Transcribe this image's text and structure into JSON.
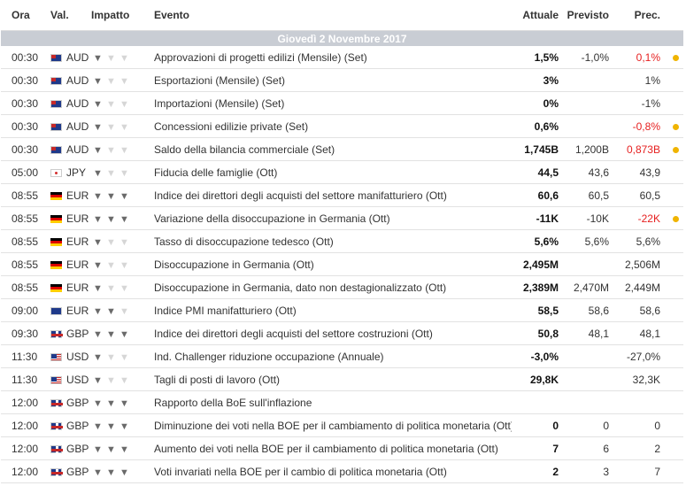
{
  "headers": {
    "time": "Ora",
    "currency": "Val.",
    "impact": "Impatto",
    "event": "Evento",
    "actual": "Attuale",
    "forecast": "Previsto",
    "previous": "Prec."
  },
  "date_label": "Giovedì 2 Novembre 2017",
  "colors": {
    "positive": "#2aa02a",
    "negative": "#e62020",
    "date_bar": "#c9cdd4",
    "revision_dot": "#f0b400"
  },
  "events": [
    {
      "time": "00:30",
      "flag": "au",
      "currency": "AUD",
      "impact": 1,
      "event": "Approvazioni di progetti edilizi (Mensile) (Set)",
      "actual": "1,5%",
      "actual_color": "green",
      "forecast": "-1,0%",
      "previous": "0,1%",
      "previous_color": "red",
      "dot": true
    },
    {
      "time": "00:30",
      "flag": "au",
      "currency": "AUD",
      "impact": 1,
      "event": "Esportazioni (Mensile) (Set)",
      "actual": "3%",
      "actual_color": "",
      "forecast": "",
      "previous": "1%",
      "previous_color": "",
      "dot": false
    },
    {
      "time": "00:30",
      "flag": "au",
      "currency": "AUD",
      "impact": 1,
      "event": "Importazioni (Mensile) (Set)",
      "actual": "0%",
      "actual_color": "",
      "forecast": "",
      "previous": "-1%",
      "previous_color": "",
      "dot": false
    },
    {
      "time": "00:30",
      "flag": "au",
      "currency": "AUD",
      "impact": 1,
      "event": "Concessioni edilizie private (Set)",
      "actual": "0,6%",
      "actual_color": "",
      "forecast": "",
      "previous": "-0,8%",
      "previous_color": "red",
      "dot": true
    },
    {
      "time": "00:30",
      "flag": "au",
      "currency": "AUD",
      "impact": 1,
      "event": "Saldo della bilancia commerciale (Set)",
      "actual": "1,745B",
      "actual_color": "green",
      "forecast": "1,200B",
      "previous": "0,873B",
      "previous_color": "red",
      "dot": true
    },
    {
      "time": "05:00",
      "flag": "jp",
      "currency": "JPY",
      "impact": 1,
      "event": "Fiducia delle famiglie (Ott)",
      "actual": "44,5",
      "actual_color": "green",
      "forecast": "43,6",
      "previous": "43,9",
      "previous_color": "",
      "dot": false
    },
    {
      "time": "08:55",
      "flag": "de",
      "currency": "EUR",
      "impact": 3,
      "event": "Indice dei direttori degli acquisti del settore manifatturiero (Ott)",
      "actual": "60,6",
      "actual_color": "green",
      "forecast": "60,5",
      "previous": "60,5",
      "previous_color": "",
      "dot": false
    },
    {
      "time": "08:55",
      "flag": "de",
      "currency": "EUR",
      "impact": 3,
      "event": "Variazione della disoccupazione in Germania (Ott)",
      "actual": "-11K",
      "actual_color": "green",
      "forecast": "-10K",
      "previous": "-22K",
      "previous_color": "red",
      "dot": true
    },
    {
      "time": "08:55",
      "flag": "de",
      "currency": "EUR",
      "impact": 1,
      "event": "Tasso di disoccupazione tedesco (Ott)",
      "actual": "5,6%",
      "actual_color": "",
      "forecast": "5,6%",
      "previous": "5,6%",
      "previous_color": "",
      "dot": false
    },
    {
      "time": "08:55",
      "flag": "de",
      "currency": "EUR",
      "impact": 1,
      "event": "Disoccupazione in Germania (Ott)",
      "actual": "2,495M",
      "actual_color": "",
      "forecast": "",
      "previous": "2,506M",
      "previous_color": "",
      "dot": false
    },
    {
      "time": "08:55",
      "flag": "de",
      "currency": "EUR",
      "impact": 1,
      "event": "Disoccupazione in Germania, dato non destagionalizzato (Ott)",
      "actual": "2,389M",
      "actual_color": "green",
      "forecast": "2,470M",
      "previous": "2,449M",
      "previous_color": "",
      "dot": false
    },
    {
      "time": "09:00",
      "flag": "eu",
      "currency": "EUR",
      "impact": 2,
      "event": "Indice PMI manifatturiero (Ott)",
      "actual": "58,5",
      "actual_color": "red",
      "forecast": "58,6",
      "previous": "58,6",
      "previous_color": "",
      "dot": false
    },
    {
      "time": "09:30",
      "flag": "gb",
      "currency": "GBP",
      "impact": 3,
      "event": "Indice dei direttori degli acquisti del settore costruzioni (Ott)",
      "actual": "50,8",
      "actual_color": "green",
      "forecast": "48,1",
      "previous": "48,1",
      "previous_color": "",
      "dot": false
    },
    {
      "time": "11:30",
      "flag": "us",
      "currency": "USD",
      "impact": 1,
      "event": "Ind. Challenger riduzione occupazione (Annuale)",
      "actual": "-3,0%",
      "actual_color": "",
      "forecast": "",
      "previous": "-27,0%",
      "previous_color": "",
      "dot": false
    },
    {
      "time": "11:30",
      "flag": "us",
      "currency": "USD",
      "impact": 1,
      "event": "Tagli di posti di lavoro (Ott)",
      "actual": "29,8K",
      "actual_color": "",
      "forecast": "",
      "previous": "32,3K",
      "previous_color": "",
      "dot": false
    },
    {
      "time": "12:00",
      "flag": "gb",
      "currency": "GBP",
      "impact": 3,
      "event": "Rapporto della BoE sull'inflazione",
      "actual": "",
      "actual_color": "",
      "forecast": "",
      "previous": "",
      "previous_color": "",
      "dot": false
    },
    {
      "time": "12:00",
      "flag": "gb",
      "currency": "GBP",
      "impact": 3,
      "event": "Diminuzione dei voti nella BOE per il cambiamento di politica monetaria (Ott)",
      "actual": "0",
      "actual_color": "",
      "forecast": "0",
      "previous": "0",
      "previous_color": "",
      "dot": false
    },
    {
      "time": "12:00",
      "flag": "gb",
      "currency": "GBP",
      "impact": 3,
      "event": "Aumento dei voti nella BOE per il cambiamento di politica monetaria (Ott)",
      "actual": "7",
      "actual_color": "green",
      "forecast": "6",
      "previous": "2",
      "previous_color": "",
      "dot": false
    },
    {
      "time": "12:00",
      "flag": "gb",
      "currency": "GBP",
      "impact": 3,
      "event": "Voti invariati nella BOE per il cambio di politica monetaria (Ott)",
      "actual": "2",
      "actual_color": "red",
      "forecast": "3",
      "previous": "7",
      "previous_color": "",
      "dot": false
    }
  ]
}
